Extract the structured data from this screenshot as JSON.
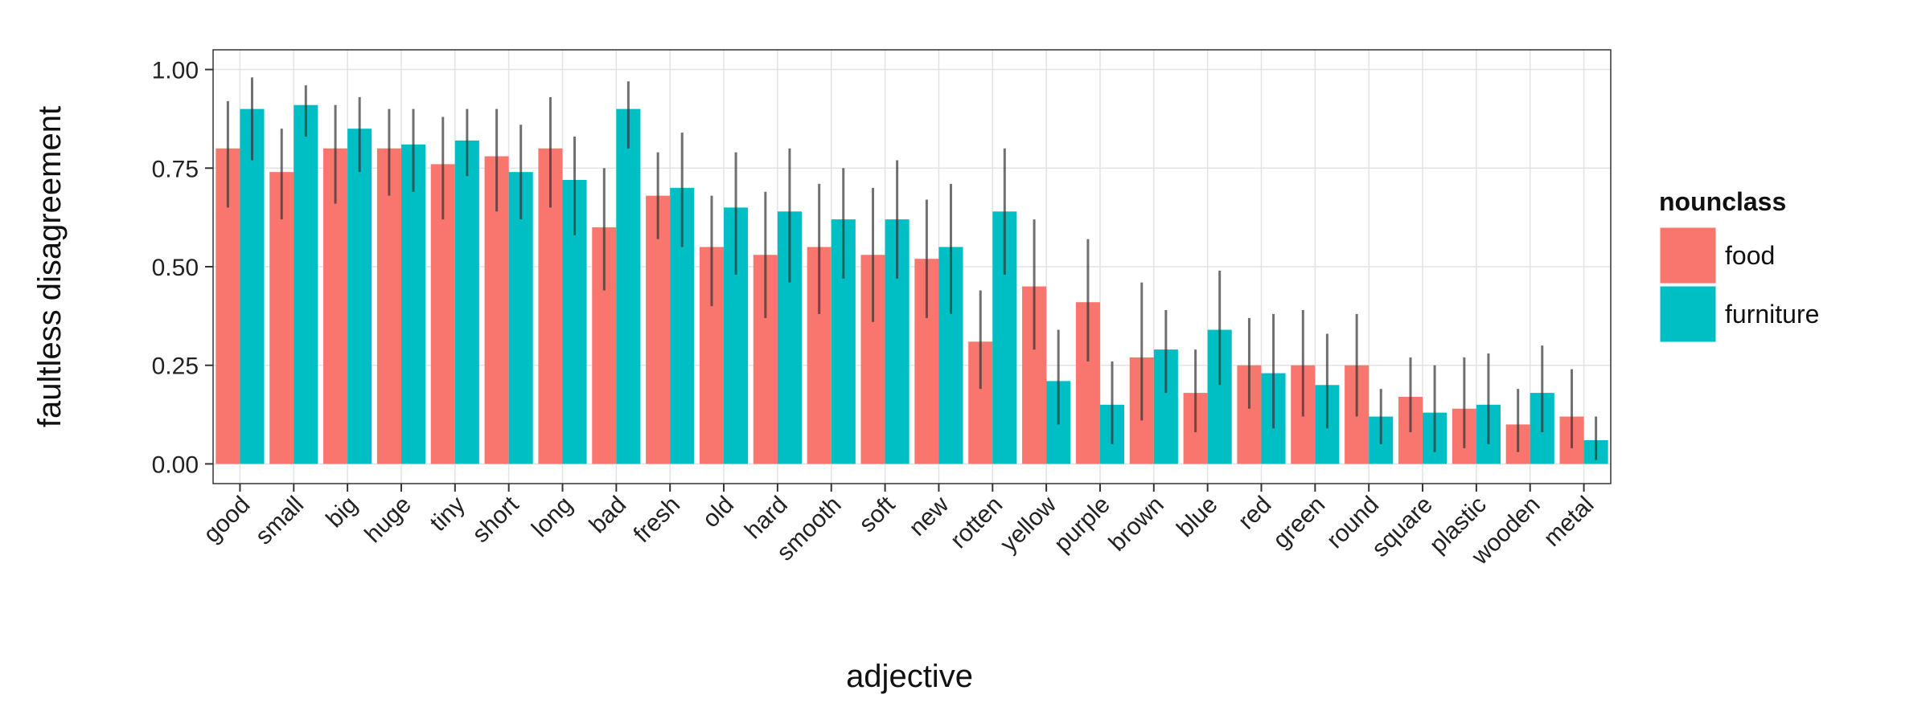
{
  "chart_data": {
    "type": "bar",
    "xlabel": "adjective",
    "ylabel": "faultless disagreement",
    "ylim": [
      -0.05,
      1.05
    ],
    "yticks": [
      0.0,
      0.25,
      0.5,
      0.75,
      1.0
    ],
    "ytick_labels": [
      "0.00",
      "0.25",
      "0.50",
      "0.75",
      "1.00"
    ],
    "grid": true,
    "legend": {
      "title": "nounclass",
      "position": "right"
    },
    "categories": [
      "good",
      "small",
      "big",
      "huge",
      "tiny",
      "short",
      "long",
      "bad",
      "fresh",
      "old",
      "hard",
      "smooth",
      "soft",
      "new",
      "rotten",
      "yellow",
      "purple",
      "brown",
      "blue",
      "red",
      "green",
      "round",
      "square",
      "plastic",
      "wooden",
      "metal"
    ],
    "series": [
      {
        "name": "food",
        "color": "#F8766D",
        "values": [
          0.8,
          0.74,
          0.8,
          0.8,
          0.76,
          0.78,
          0.8,
          0.6,
          0.68,
          0.55,
          0.53,
          0.55,
          0.53,
          0.52,
          0.31,
          0.45,
          0.41,
          0.27,
          0.18,
          0.25,
          0.25,
          0.25,
          0.17,
          0.14,
          0.1,
          0.12
        ],
        "error_low": [
          0.65,
          0.62,
          0.66,
          0.68,
          0.62,
          0.64,
          0.65,
          0.44,
          0.57,
          0.4,
          0.37,
          0.38,
          0.36,
          0.37,
          0.19,
          0.29,
          0.26,
          0.11,
          0.08,
          0.14,
          0.12,
          0.12,
          0.08,
          0.04,
          0.03,
          0.04
        ],
        "error_high": [
          0.92,
          0.85,
          0.91,
          0.9,
          0.88,
          0.9,
          0.93,
          0.75,
          0.79,
          0.68,
          0.69,
          0.71,
          0.7,
          0.67,
          0.44,
          0.62,
          0.57,
          0.46,
          0.29,
          0.37,
          0.39,
          0.38,
          0.27,
          0.27,
          0.19,
          0.24
        ]
      },
      {
        "name": "furniture",
        "color": "#00BFC4",
        "values": [
          0.9,
          0.91,
          0.85,
          0.81,
          0.82,
          0.74,
          0.72,
          0.9,
          0.7,
          0.65,
          0.64,
          0.62,
          0.62,
          0.55,
          0.64,
          0.21,
          0.15,
          0.29,
          0.34,
          0.23,
          0.2,
          0.12,
          0.13,
          0.15,
          0.18,
          0.06
        ],
        "error_low": [
          0.77,
          0.83,
          0.74,
          0.69,
          0.73,
          0.62,
          0.58,
          0.8,
          0.55,
          0.48,
          0.46,
          0.47,
          0.47,
          0.38,
          0.48,
          0.1,
          0.05,
          0.18,
          0.2,
          0.09,
          0.09,
          0.05,
          0.03,
          0.05,
          0.08,
          0.01
        ],
        "error_high": [
          0.98,
          0.96,
          0.93,
          0.9,
          0.9,
          0.86,
          0.83,
          0.97,
          0.84,
          0.79,
          0.8,
          0.75,
          0.77,
          0.71,
          0.8,
          0.34,
          0.26,
          0.39,
          0.49,
          0.38,
          0.33,
          0.19,
          0.25,
          0.28,
          0.3,
          0.12
        ]
      }
    ]
  }
}
